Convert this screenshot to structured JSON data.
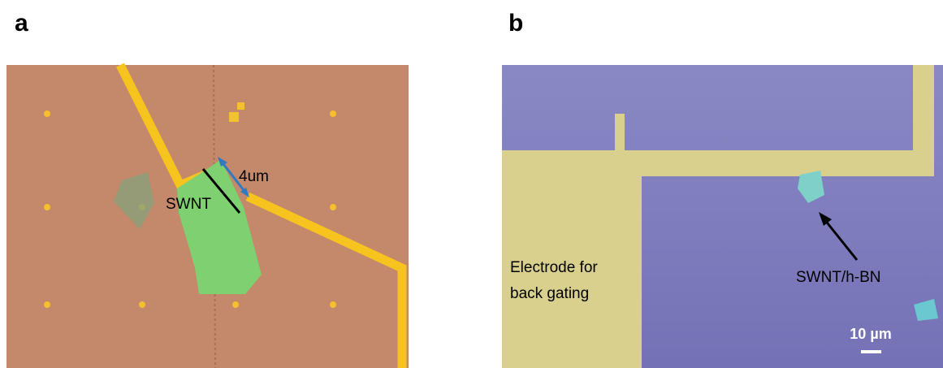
{
  "panels": [
    {
      "label": "a",
      "annotations": {
        "length": "4um",
        "tube": "SWNT"
      }
    },
    {
      "label": "b",
      "annotations": {
        "electrode": [
          "Electrode for",
          "back gating"
        ],
        "sample": "SWNT/h-BN",
        "scale_bar": "10 µm"
      }
    }
  ]
}
